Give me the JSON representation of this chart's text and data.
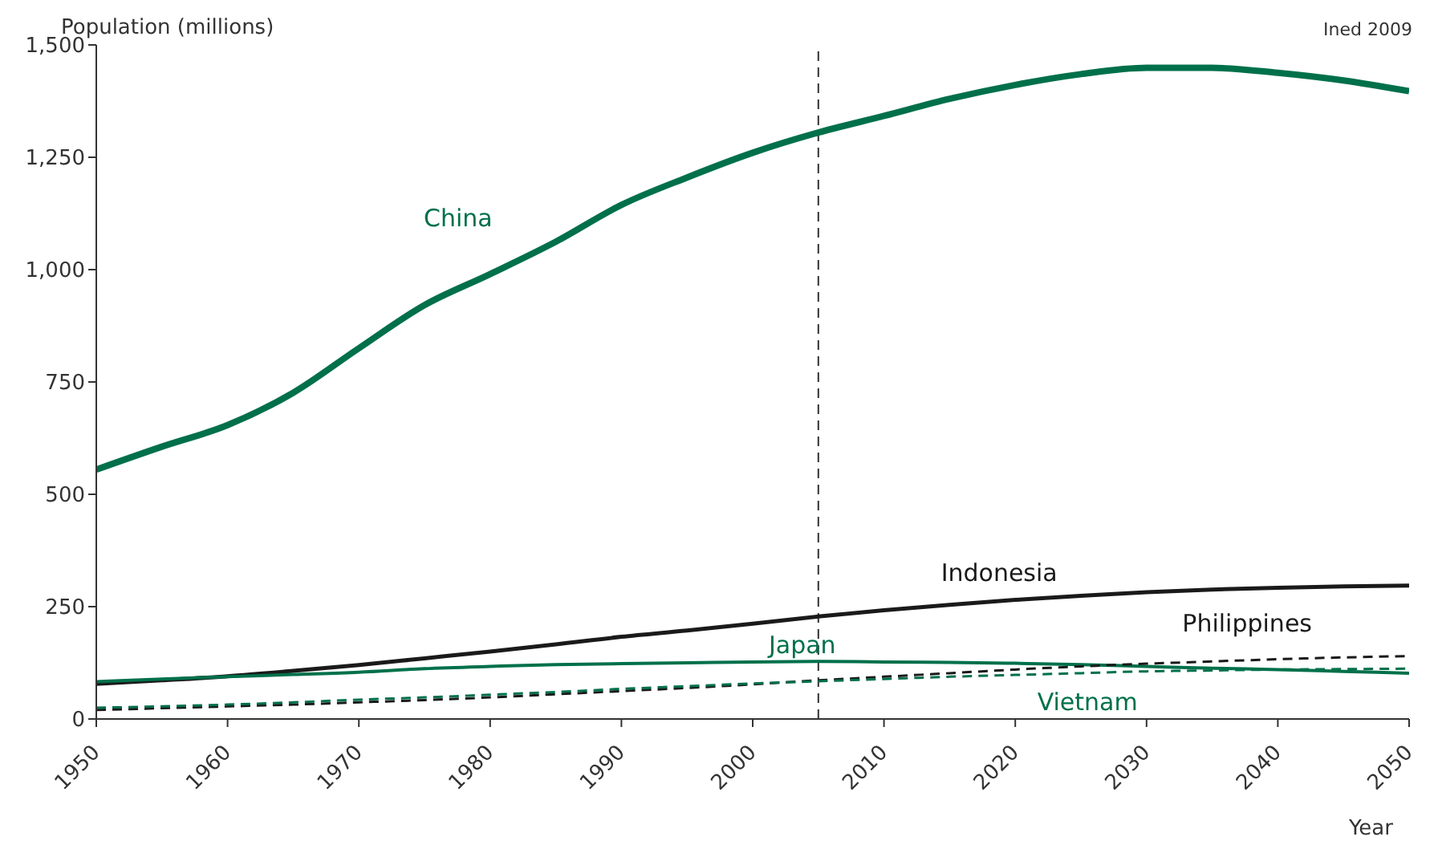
{
  "chart_data": {
    "type": "line",
    "ylabel": "Population (millions)",
    "xlabel": "Year",
    "annotations": [
      "Ined 2009"
    ],
    "x": [
      1950,
      1955,
      1960,
      1965,
      1970,
      1975,
      1980,
      1985,
      1990,
      1995,
      2000,
      2005,
      2010,
      2015,
      2020,
      2025,
      2030,
      2035,
      2040,
      2045,
      2050
    ],
    "series": [
      {
        "name": "China",
        "color": "#00704a",
        "line_style": "solid",
        "values": [
          555,
          606,
          654,
          726,
          825,
          921,
          990,
          1062,
          1144,
          1205,
          1260,
          1305,
          1342,
          1380,
          1411,
          1435,
          1449,
          1449,
          1438,
          1421,
          1397
        ]
      },
      {
        "name": "Indonesia",
        "color": "#1a1a1a",
        "line_style": "solid",
        "values": [
          78,
          86,
          95,
          107,
          120,
          135,
          150,
          166,
          183,
          197,
          212,
          228,
          242,
          254,
          265,
          274,
          282,
          288,
          292,
          295,
          297
        ]
      },
      {
        "name": "Japan",
        "color": "#00704a",
        "line_style": "solid",
        "values": [
          83,
          89,
          94,
          99,
          104,
          112,
          117,
          121,
          123,
          125,
          127,
          128,
          127,
          126,
          124,
          121,
          117,
          113,
          110,
          106,
          102
        ]
      },
      {
        "name": "Philippines",
        "color": "#1a1a1a",
        "line_style": "dashed",
        "values": [
          20,
          24,
          28,
          32,
          37,
          42,
          48,
          55,
          62,
          69,
          77,
          86,
          94,
          102,
          110,
          117,
          123,
          128,
          133,
          137,
          140
        ]
      },
      {
        "name": "Vietnam",
        "color": "#00704a",
        "line_style": "dashed",
        "values": [
          25,
          28,
          32,
          37,
          43,
          48,
          54,
          60,
          67,
          73,
          79,
          84,
          89,
          94,
          98,
          102,
          106,
          108,
          110,
          111,
          112
        ]
      }
    ],
    "xlim": [
      1950,
      2050
    ],
    "xticks": [
      1950,
      1960,
      1970,
      1980,
      1990,
      2000,
      2010,
      2020,
      2030,
      2040,
      2050
    ],
    "ylim": [
      0,
      1500
    ],
    "yticks": [
      0,
      250,
      500,
      750,
      {
        "value": 1000,
        "label": "1,000"
      },
      {
        "value": 1250,
        "label": "1,250"
      },
      {
        "value": 1500,
        "label": "1,500"
      }
    ],
    "ref_lines": [
      {
        "axis": "x",
        "value": 2005,
        "color": "#333333",
        "line_style": "dashed"
      }
    ],
    "grid": false,
    "legend": false,
    "marker": "none"
  }
}
